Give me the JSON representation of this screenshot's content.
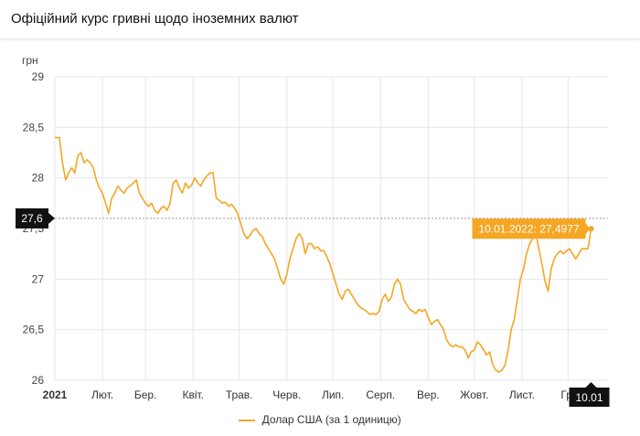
{
  "header": {
    "title": "Офіційний курс гривні щодо іноземних валют"
  },
  "colors": {
    "line": "#f5a623",
    "tooltip_bg": "#f5a623",
    "axis_badge_bg": "#111111",
    "grid": "#e6e6e6"
  },
  "chart_data": {
    "type": "line",
    "ylabel": "грн",
    "ylim": [
      26,
      29
    ],
    "yticks": [
      {
        "value": 29,
        "label": "29"
      },
      {
        "value": 28.5,
        "label": "28,5"
      },
      {
        "value": 28,
        "label": "28"
      },
      {
        "value": 27.5,
        "label": "27,5"
      },
      {
        "value": 27,
        "label": "27"
      },
      {
        "value": 26.5,
        "label": "26,5"
      },
      {
        "value": 26,
        "label": "26"
      }
    ],
    "xticks": [
      {
        "day": 0,
        "label": "2021",
        "bold": true
      },
      {
        "day": 31,
        "label": "Лют."
      },
      {
        "day": 59,
        "label": "Бер."
      },
      {
        "day": 90,
        "label": "Квіт."
      },
      {
        "day": 120,
        "label": "Трав."
      },
      {
        "day": 151,
        "label": "Черв."
      },
      {
        "day": 181,
        "label": "Лип."
      },
      {
        "day": 212,
        "label": "Серп."
      },
      {
        "day": 243,
        "label": "Вер."
      },
      {
        "day": 273,
        "label": "Жовт."
      },
      {
        "day": 304,
        "label": "Лист."
      },
      {
        "day": 334,
        "label": "Гр."
      }
    ],
    "xmax": 374,
    "series": [
      {
        "name": "Долар США (за 1 одиницю)",
        "points": [
          [
            0,
            28.4
          ],
          [
            3,
            28.4
          ],
          [
            5,
            28.15
          ],
          [
            7,
            27.98
          ],
          [
            9,
            28.05
          ],
          [
            11,
            28.1
          ],
          [
            13,
            28.05
          ],
          [
            15,
            28.22
          ],
          [
            17,
            28.25
          ],
          [
            19,
            28.15
          ],
          [
            21,
            28.18
          ],
          [
            23,
            28.15
          ],
          [
            25,
            28.1
          ],
          [
            27,
            27.98
          ],
          [
            29,
            27.9
          ],
          [
            31,
            27.85
          ],
          [
            33,
            27.75
          ],
          [
            35,
            27.65
          ],
          [
            37,
            27.8
          ],
          [
            39,
            27.85
          ],
          [
            41,
            27.92
          ],
          [
            43,
            27.88
          ],
          [
            45,
            27.85
          ],
          [
            47,
            27.9
          ],
          [
            49,
            27.92
          ],
          [
            51,
            27.95
          ],
          [
            53,
            27.98
          ],
          [
            55,
            27.85
          ],
          [
            57,
            27.8
          ],
          [
            59,
            27.75
          ],
          [
            61,
            27.72
          ],
          [
            63,
            27.75
          ],
          [
            65,
            27.68
          ],
          [
            67,
            27.65
          ],
          [
            69,
            27.7
          ],
          [
            71,
            27.72
          ],
          [
            73,
            27.68
          ],
          [
            75,
            27.75
          ],
          [
            77,
            27.95
          ],
          [
            79,
            27.98
          ],
          [
            81,
            27.9
          ],
          [
            83,
            27.85
          ],
          [
            85,
            27.95
          ],
          [
            87,
            27.9
          ],
          [
            89,
            27.93
          ],
          [
            91,
            28.0
          ],
          [
            93,
            27.95
          ],
          [
            95,
            27.92
          ],
          [
            97,
            27.98
          ],
          [
            99,
            28.02
          ],
          [
            101,
            28.05
          ],
          [
            103,
            28.05
          ],
          [
            105,
            27.8
          ],
          [
            107,
            27.78
          ],
          [
            109,
            27.75
          ],
          [
            111,
            27.76
          ],
          [
            113,
            27.72
          ],
          [
            115,
            27.74
          ],
          [
            117,
            27.7
          ],
          [
            119,
            27.65
          ],
          [
            121,
            27.55
          ],
          [
            123,
            27.45
          ],
          [
            125,
            27.4
          ],
          [
            127,
            27.43
          ],
          [
            129,
            27.48
          ],
          [
            131,
            27.5
          ],
          [
            133,
            27.45
          ],
          [
            135,
            27.42
          ],
          [
            137,
            27.35
          ],
          [
            139,
            27.3
          ],
          [
            141,
            27.25
          ],
          [
            143,
            27.2
          ],
          [
            145,
            27.1
          ],
          [
            147,
            27.0
          ],
          [
            149,
            26.95
          ],
          [
            151,
            27.05
          ],
          [
            153,
            27.2
          ],
          [
            155,
            27.3
          ],
          [
            157,
            27.4
          ],
          [
            159,
            27.45
          ],
          [
            161,
            27.4
          ],
          [
            163,
            27.25
          ],
          [
            165,
            27.35
          ],
          [
            167,
            27.35
          ],
          [
            169,
            27.3
          ],
          [
            171,
            27.32
          ],
          [
            173,
            27.28
          ],
          [
            175,
            27.28
          ],
          [
            177,
            27.22
          ],
          [
            179,
            27.15
          ],
          [
            181,
            27.05
          ],
          [
            183,
            26.95
          ],
          [
            185,
            26.85
          ],
          [
            187,
            26.8
          ],
          [
            189,
            26.88
          ],
          [
            191,
            26.9
          ],
          [
            193,
            26.85
          ],
          [
            195,
            26.8
          ],
          [
            197,
            26.75
          ],
          [
            199,
            26.72
          ],
          [
            201,
            26.7
          ],
          [
            203,
            26.68
          ],
          [
            205,
            26.65
          ],
          [
            207,
            26.66
          ],
          [
            209,
            26.65
          ],
          [
            211,
            26.68
          ],
          [
            213,
            26.8
          ],
          [
            215,
            26.85
          ],
          [
            217,
            26.78
          ],
          [
            219,
            26.82
          ],
          [
            221,
            26.95
          ],
          [
            223,
            27.0
          ],
          [
            225,
            26.95
          ],
          [
            227,
            26.8
          ],
          [
            229,
            26.75
          ],
          [
            231,
            26.7
          ],
          [
            233,
            26.68
          ],
          [
            235,
            26.66
          ],
          [
            237,
            26.7
          ],
          [
            239,
            26.68
          ],
          [
            241,
            26.7
          ],
          [
            243,
            26.62
          ],
          [
            245,
            26.55
          ],
          [
            247,
            26.58
          ],
          [
            249,
            26.6
          ],
          [
            251,
            26.55
          ],
          [
            253,
            26.5
          ],
          [
            255,
            26.4
          ],
          [
            257,
            26.35
          ],
          [
            259,
            26.33
          ],
          [
            261,
            26.35
          ],
          [
            263,
            26.33
          ],
          [
            265,
            26.33
          ],
          [
            267,
            26.3
          ],
          [
            269,
            26.22
          ],
          [
            271,
            26.28
          ],
          [
            273,
            26.3
          ],
          [
            275,
            26.38
          ],
          [
            277,
            26.35
          ],
          [
            279,
            26.3
          ],
          [
            281,
            26.25
          ],
          [
            283,
            26.28
          ],
          [
            285,
            26.15
          ],
          [
            287,
            26.1
          ],
          [
            289,
            26.08
          ],
          [
            291,
            26.1
          ],
          [
            293,
            26.15
          ],
          [
            295,
            26.3
          ],
          [
            297,
            26.5
          ],
          [
            299,
            26.6
          ],
          [
            301,
            26.8
          ],
          [
            303,
            27.0
          ],
          [
            305,
            27.1
          ],
          [
            307,
            27.25
          ],
          [
            309,
            27.35
          ],
          [
            311,
            27.4
          ],
          [
            313,
            27.45
          ],
          [
            315,
            27.3
          ],
          [
            317,
            27.15
          ],
          [
            319,
            26.98
          ],
          [
            321,
            26.88
          ],
          [
            323,
            27.1
          ],
          [
            325,
            27.2
          ],
          [
            327,
            27.25
          ],
          [
            329,
            27.28
          ],
          [
            331,
            27.25
          ],
          [
            333,
            27.28
          ],
          [
            335,
            27.3
          ],
          [
            337,
            27.25
          ],
          [
            339,
            27.2
          ],
          [
            341,
            27.25
          ],
          [
            343,
            27.3
          ],
          [
            345,
            27.3
          ],
          [
            347,
            27.3
          ],
          [
            349,
            27.5
          ]
        ]
      }
    ],
    "tooltip": {
      "day": 349,
      "value": 27.4977,
      "text": "10.01.2022: 27,4977"
    },
    "crosshair": {
      "y_value": 27.6,
      "y_label": "27,6",
      "x_day": 349,
      "x_label": "10.01"
    }
  }
}
